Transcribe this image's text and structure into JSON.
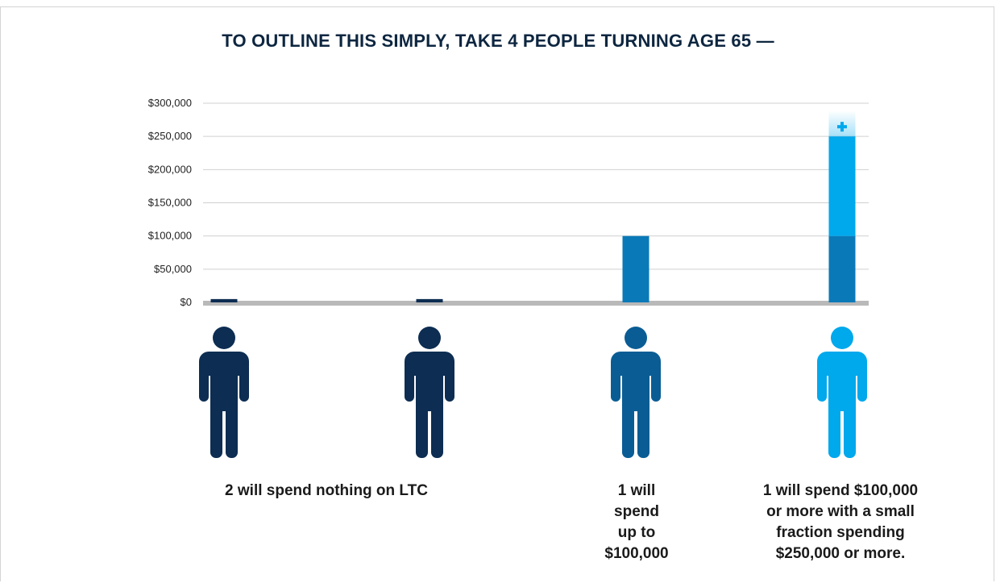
{
  "chart_data": {
    "type": "bar",
    "title": "TO OUTLINE THIS SIMPLY, TAKE 4 PEOPLE TURNING AGE 65 —",
    "ylim": [
      0,
      300000
    ],
    "yticks": [
      {
        "value": 0,
        "label": "$0"
      },
      {
        "value": 50000,
        "label": "$50,000"
      },
      {
        "value": 100000,
        "label": "$100,000"
      },
      {
        "value": 150000,
        "label": "$150,000"
      },
      {
        "value": 200000,
        "label": "$200,000"
      },
      {
        "value": 250000,
        "label": "$250,000"
      },
      {
        "value": 300000,
        "label": "$300,000"
      }
    ],
    "grid": true,
    "bars": [
      {
        "person": 1,
        "segments": [
          {
            "from": 0,
            "to": 5000,
            "color": "#0d2d52"
          }
        ]
      },
      {
        "person": 2,
        "segments": [
          {
            "from": 0,
            "to": 5000,
            "color": "#0d2d52"
          }
        ]
      },
      {
        "person": 3,
        "segments": [
          {
            "from": 0,
            "to": 100000,
            "color": "#0a79b8"
          }
        ]
      },
      {
        "person": 4,
        "segments": [
          {
            "from": 0,
            "to": 100000,
            "color": "#0a79b8"
          },
          {
            "from": 100000,
            "to": 250000,
            "color": "#00a8ec"
          }
        ],
        "extends_beyond": 250000,
        "overflow_icon": "plus-icon"
      }
    ],
    "people_colors": [
      "#0d2d52",
      "#0d2d52",
      "#0a5d94",
      "#00a8ec"
    ],
    "captions": [
      {
        "lines": [
          "2 will spend nothing on LTC"
        ]
      },
      {
        "lines": [
          "1 will",
          "spend",
          "up to",
          "$100,000"
        ]
      },
      {
        "lines": [
          "1 will spend $100,000",
          "or more with a small",
          "fraction spending",
          "$250,000 or more."
        ]
      }
    ],
    "colors": {
      "grid": "#d0d0d0",
      "baseline": "#b9b9b9"
    }
  }
}
